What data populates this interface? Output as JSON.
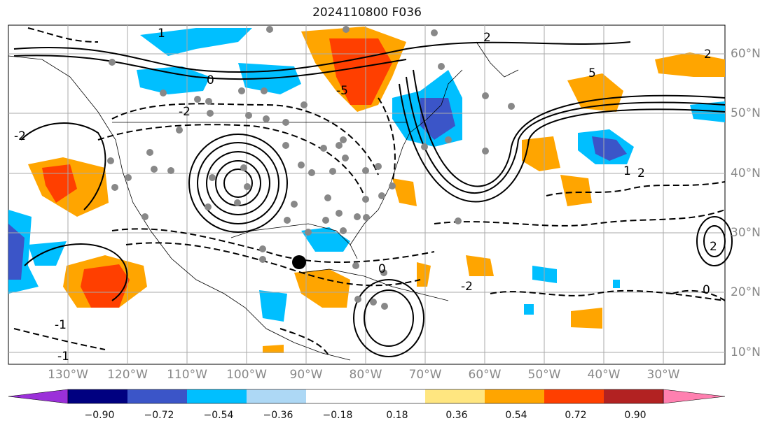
{
  "title": "2024110800 F036",
  "lat_labels": [
    "60°N",
    "50°N",
    "40°N",
    "30°N",
    "20°N",
    "10°N"
  ],
  "lon_labels": [
    "130°W",
    "120°W",
    "110°W",
    "100°W",
    "90°W",
    "80°W",
    "70°W",
    "60°W",
    "50°W",
    "40°W",
    "30°W"
  ],
  "contour_labels": [
    "2",
    "-2",
    "0",
    "-1",
    "5",
    "-5",
    "1",
    "2",
    "-2",
    "0",
    "2",
    "-2",
    "1",
    "-1",
    "2",
    "0"
  ],
  "colorbar": {
    "ticks": [
      "−0.90",
      "−0.72",
      "−0.54",
      "−0.36",
      "−0.18",
      "0.18",
      "0.36",
      "0.54",
      "0.72",
      "0.90"
    ],
    "colors": [
      "#9b30d9",
      "#000080",
      "#3b55c8",
      "#00bfff",
      "#add8f5",
      "#ffffff",
      "#ffe680",
      "#ffa500",
      "#ff3f00",
      "#b22222",
      "#ff80b0"
    ]
  }
}
